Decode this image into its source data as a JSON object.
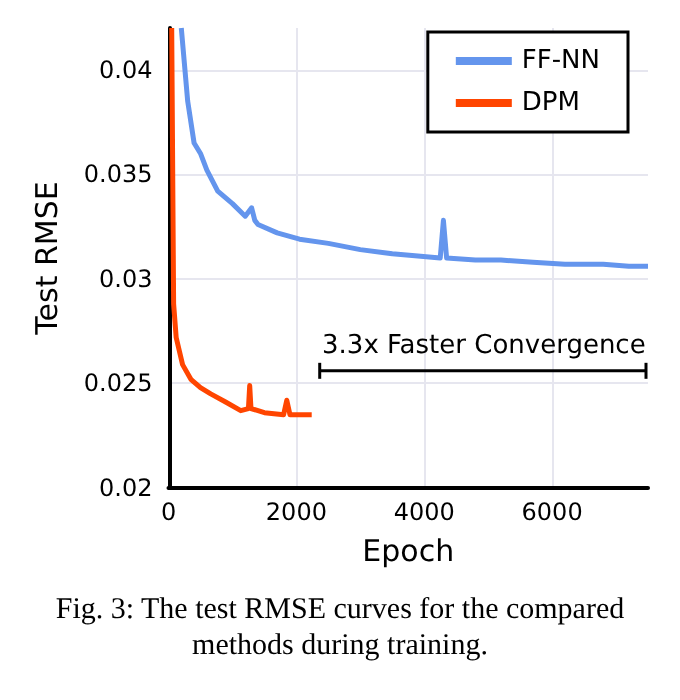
{
  "chart_data": {
    "type": "line",
    "xlabel": "Epoch",
    "ylabel": "Test RMSE",
    "xlim": [
      0,
      7500
    ],
    "ylim": [
      0.02,
      0.042
    ],
    "xticks": [
      0,
      2000,
      4000,
      6000
    ],
    "yticks": [
      0.02,
      0.025,
      0.03,
      0.035,
      0.04
    ],
    "grid": true,
    "legend": "top right",
    "marker": "none",
    "line_style": "solid",
    "series": [
      {
        "name": "FF-NN",
        "color": "#6495ed",
        "x": [
          200,
          300,
          400,
          500,
          600,
          770,
          1000,
          1200,
          1300,
          1350,
          1400,
          1700,
          2050,
          2500,
          3000,
          3500,
          3900,
          4250,
          4300,
          4350,
          4800,
          5200,
          5700,
          6200,
          6800,
          7200,
          7500
        ],
        "values": [
          0.042,
          0.0385,
          0.0365,
          0.036,
          0.0352,
          0.0342,
          0.0336,
          0.033,
          0.0334,
          0.0328,
          0.0326,
          0.0322,
          0.0319,
          0.0317,
          0.0314,
          0.0312,
          0.0311,
          0.031,
          0.0328,
          0.031,
          0.0309,
          0.0309,
          0.0308,
          0.0307,
          0.0307,
          0.0306,
          0.0306
        ]
      },
      {
        "name": "DPM",
        "color": "#ff4500",
        "x": [
          50,
          80,
          120,
          220,
          350,
          500,
          660,
          900,
          1130,
          1250,
          1270,
          1290,
          1500,
          1800,
          1850,
          1900,
          2240
        ],
        "values": [
          0.042,
          0.0288,
          0.0272,
          0.0259,
          0.0252,
          0.0248,
          0.0245,
          0.0241,
          0.0237,
          0.0238,
          0.0249,
          0.0238,
          0.0236,
          0.0235,
          0.0242,
          0.0235,
          0.0235
        ]
      }
    ],
    "annotations": [
      "3.3x Faster Convergence",
      "Fig. 3: The test RMSE curves for the compared methods during training."
    ]
  }
}
